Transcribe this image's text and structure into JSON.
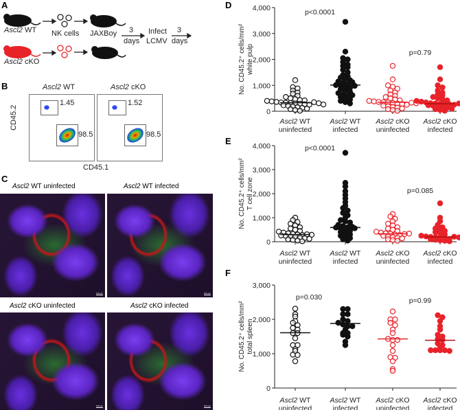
{
  "panels": {
    "a": "A",
    "b": "B",
    "c": "C",
    "d": "D",
    "e": "E",
    "f": "F"
  },
  "panel_a": {
    "wt_label_gene": "Ascl2",
    "wt_label_rest": " WT",
    "cko_label_gene": "Ascl2",
    "cko_label_rest": " cKO",
    "nk_cells": "NK cells",
    "recipient": "JAXBoy",
    "step1_top": "3",
    "step1_bottom": "days",
    "infect_top": "Infect",
    "infect_bottom": "LCMV",
    "step2_top": "3",
    "step2_bottom": "days",
    "colors": {
      "wt": "#111111",
      "cko": "#e8232a"
    }
  },
  "panel_b": {
    "plots": [
      {
        "title_gene": "Ascl2",
        "title_rest": " WT",
        "upper_gate": "1.45",
        "lower_gate": "98.5"
      },
      {
        "title_gene": "Ascl2",
        "title_rest": " cKO",
        "upper_gate": "1.52",
        "lower_gate": "98.5"
      }
    ],
    "ylabel": "CD45.2",
    "xlabel": "CD45.1"
  },
  "panel_c": {
    "images": [
      {
        "gene": "Ascl2",
        "rest": " WT uninfected",
        "scale": "100 µm"
      },
      {
        "gene": "Ascl2",
        "rest": " WT infected",
        "scale": "100 µm"
      },
      {
        "gene": "Ascl2",
        "rest": " cKO uninfected",
        "scale": "100 µm"
      },
      {
        "gene": "Ascl2",
        "rest": " cKO infected",
        "scale": "100 µm"
      }
    ]
  },
  "chart_data": [
    {
      "panel": "D",
      "type": "scatter",
      "ylabel_line1": "No. CD45.2⁺ cells/mm²",
      "ylabel_line2": "white pulp",
      "ylim": [
        0,
        4000
      ],
      "yticks": [
        "0",
        "1,000",
        "2,000",
        "3,000",
        "4,000"
      ],
      "categories": [
        {
          "gene": "Ascl2",
          "l1": " WT",
          "l2": "uninfected"
        },
        {
          "gene": "Ascl2",
          "l1": " WT",
          "l2": "infected"
        },
        {
          "gene": "Ascl2",
          "l1": " cKO",
          "l2": "uninfected"
        },
        {
          "gene": "Ascl2",
          "l1": " cKO",
          "l2": "infected"
        }
      ],
      "annotations": [
        "p<0.0001",
        "p=0.79"
      ],
      "medians": [
        330,
        1010,
        350,
        290
      ],
      "series": [
        [
          1200,
          930,
          880,
          800,
          720,
          680,
          600,
          550,
          500,
          470,
          430,
          400,
          380,
          360,
          340,
          330,
          320,
          300,
          290,
          270,
          250,
          230,
          210,
          190,
          160,
          130,
          100,
          80,
          50,
          20,
          350,
          310,
          420,
          260
        ],
        [
          3450,
          2300,
          2050,
          2000,
          1900,
          1800,
          1750,
          1700,
          1600,
          1500,
          1400,
          1350,
          1300,
          1250,
          1200,
          1150,
          1100,
          1050,
          1010,
          1000,
          950,
          900,
          850,
          800,
          750,
          700,
          650,
          600,
          550,
          500,
          450,
          400,
          350,
          300,
          980,
          1120,
          620
        ],
        [
          1750,
          1230,
          1000,
          950,
          870,
          800,
          720,
          650,
          600,
          550,
          500,
          460,
          420,
          400,
          380,
          360,
          350,
          340,
          320,
          300,
          280,
          250,
          220,
          200,
          170,
          140,
          110,
          80,
          50,
          20,
          330,
          310
        ],
        [
          1700,
          1230,
          1000,
          920,
          800,
          720,
          650,
          600,
          550,
          500,
          460,
          420,
          400,
          370,
          340,
          310,
          300,
          290,
          280,
          270,
          250,
          230,
          210,
          190,
          160,
          130,
          100,
          80,
          50,
          20,
          300,
          260
        ]
      ]
    },
    {
      "panel": "E",
      "type": "scatter",
      "ylabel_line1": "No. CD45.2⁺ cells/mm²",
      "ylabel_line2": "T cell zone",
      "ylim": [
        0,
        4000
      ],
      "yticks": [
        "0",
        "1,000",
        "2,000",
        "3,000",
        "4,000"
      ],
      "categories": [
        {
          "gene": "Ascl2",
          "l1": " WT",
          "l2": "uninfected"
        },
        {
          "gene": "Ascl2",
          "l1": " WT",
          "l2": "infected"
        },
        {
          "gene": "Ascl2",
          "l1": " cKO",
          "l2": "uninfected"
        },
        {
          "gene": "Ascl2",
          "l1": " cKO",
          "l2": "infected"
        }
      ],
      "annotations": [
        "p<0.0001",
        "p=0.085"
      ],
      "medians": [
        300,
        590,
        330,
        200
      ],
      "series": [
        [
          1000,
          900,
          820,
          750,
          680,
          600,
          550,
          500,
          450,
          420,
          380,
          350,
          320,
          300,
          280,
          260,
          240,
          220,
          200,
          180,
          150,
          120,
          100,
          80,
          50,
          20,
          310,
          290
        ],
        [
          3700,
          2450,
          2300,
          2100,
          1950,
          1800,
          1650,
          1500,
          1400,
          1300,
          1200,
          1100,
          1000,
          900,
          850,
          800,
          700,
          650,
          600,
          590,
          550,
          500,
          450,
          400,
          350,
          300,
          250,
          200,
          150,
          100,
          50,
          620,
          560
        ],
        [
          1150,
          1050,
          950,
          850,
          750,
          680,
          600,
          550,
          500,
          450,
          420,
          380,
          350,
          330,
          300,
          280,
          250,
          220,
          200,
          170,
          140,
          100,
          70,
          40,
          320,
          340
        ],
        [
          1600,
          1000,
          850,
          700,
          600,
          550,
          500,
          450,
          400,
          350,
          300,
          250,
          220,
          200,
          190,
          170,
          150,
          120,
          100,
          80,
          60,
          40,
          20,
          210,
          180
        ]
      ]
    },
    {
      "panel": "F",
      "type": "scatter",
      "ylabel_line1": "No. CD45.2⁺ cells/mm²",
      "ylabel_line2": "total spleen",
      "ylim": [
        0,
        3000
      ],
      "yticks": [
        "0",
        "1,000",
        "2,000",
        "3,000"
      ],
      "categories": [
        {
          "gene": "Ascl2",
          "l1": " WT",
          "l2": "uninfected"
        },
        {
          "gene": "Ascl2",
          "l1": " WT",
          "l2": "infected"
        },
        {
          "gene": "Ascl2",
          "l1": " cKO",
          "l2": "uninfected"
        },
        {
          "gene": "Ascl2",
          "l1": " cKO",
          "l2": "infected"
        }
      ],
      "annotations": [
        "p=0.030",
        "p=0.99"
      ],
      "medians": [
        1610,
        1880,
        1430,
        1390
      ],
      "series": [
        [
          2310,
          2150,
          2080,
          1950,
          1900,
          1830,
          1750,
          1700,
          1600,
          1600,
          1450,
          1250,
          1250,
          1130,
          1080,
          970,
          960,
          780
        ],
        [
          2300,
          2300,
          2150,
          2150,
          2000,
          1950,
          1900,
          1850,
          1800,
          1800,
          1700,
          1600,
          1600,
          1550,
          1500,
          1350,
          1250
        ],
        [
          2230,
          2000,
          2000,
          1900,
          1830,
          1700,
          1600,
          1430,
          1400,
          1400,
          1250,
          1080,
          900,
          880,
          780,
          550,
          500
        ],
        [
          2120,
          2060,
          1950,
          1800,
          1700,
          1550,
          1500,
          1420,
          1400,
          1300,
          1250,
          1200,
          1100,
          1100,
          1100,
          1100,
          1080
        ]
      ]
    }
  ],
  "styles": {
    "red": "#e8232a",
    "black": "#111111"
  }
}
